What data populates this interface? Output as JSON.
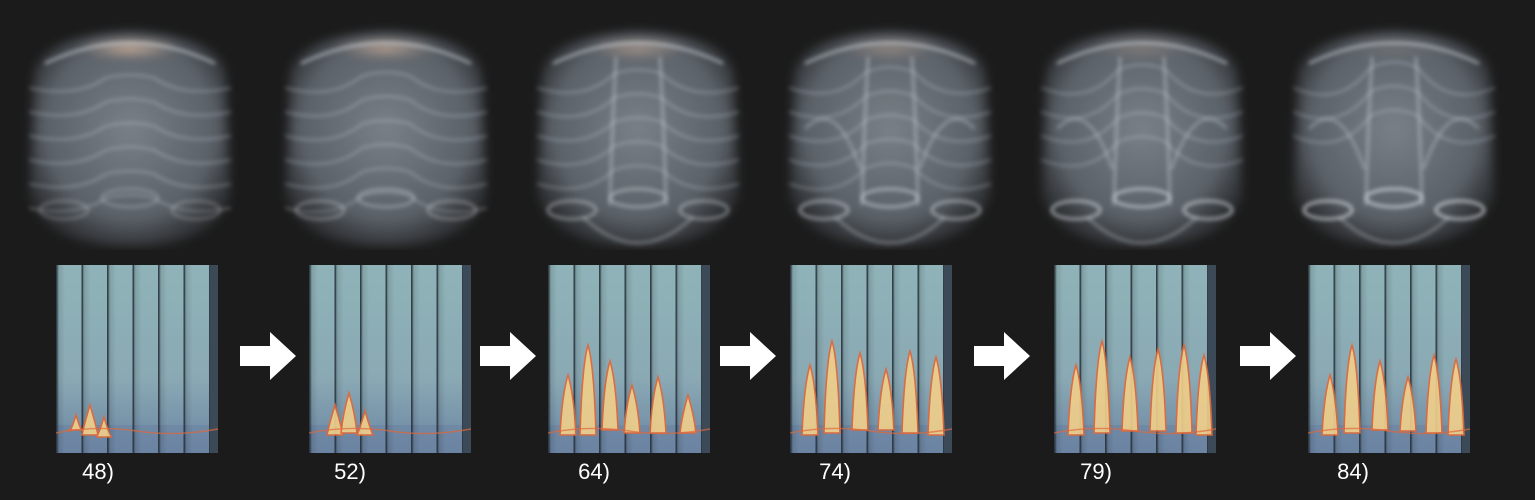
{
  "frames": [
    {
      "label": "48)",
      "step": 48
    },
    {
      "label": "52)",
      "step": 52
    },
    {
      "label": "64)",
      "step": 64
    },
    {
      "label": "74)",
      "step": 74
    },
    {
      "label": "79)",
      "step": 79
    },
    {
      "label": "84)",
      "step": 84
    }
  ],
  "arrow_icon": "right-arrow-icon",
  "colors": {
    "background": "#1b1b1b",
    "blob": "#b9c4cf",
    "panel_top": "#8fb3b8",
    "panel_bottom": "#6c86a3",
    "flame": "#f2d08a",
    "flame_edge": "#e0683a",
    "arrow": "#ffffff",
    "label": "#ffffff"
  }
}
